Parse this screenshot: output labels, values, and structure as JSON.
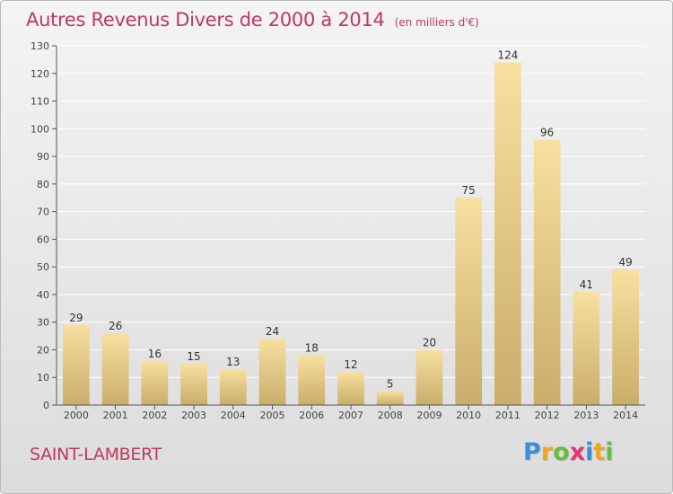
{
  "title": "Autres Revenus Divers de 2000 à 2014",
  "unit": "(en milliers d'€)",
  "commune": "SAINT-LAMBERT",
  "logo": {
    "text": "Proxiti",
    "letters": [
      {
        "ch": "P",
        "color": "#3a8fd8"
      },
      {
        "ch": "r",
        "color": "#f2a51c"
      },
      {
        "ch": "o",
        "color": "#6bbb3e"
      },
      {
        "ch": "x",
        "color": "#e2367a"
      },
      {
        "ch": "i",
        "color": "#3a8fd8"
      },
      {
        "ch": "t",
        "color": "#f2a51c"
      },
      {
        "ch": "i",
        "color": "#6bbb3e"
      }
    ]
  },
  "colors": {
    "title": "#c0385e",
    "bar_light": "#f7e0a0",
    "bar_dark": "#c9ad6b",
    "grid": "#ffffff",
    "axis": "#555555"
  },
  "chart_data": {
    "type": "bar",
    "categories": [
      "2000",
      "2001",
      "2002",
      "2003",
      "2004",
      "2005",
      "2006",
      "2007",
      "2008",
      "2009",
      "2010",
      "2011",
      "2012",
      "2013",
      "2014"
    ],
    "values": [
      29,
      26,
      16,
      15,
      13,
      24,
      18,
      12,
      5,
      20,
      75,
      124,
      96,
      41,
      49
    ],
    "title": "Autres Revenus Divers de 2000 à 2014",
    "xlabel": "",
    "ylabel": "",
    "ylim": [
      0,
      130
    ],
    "yticks": [
      0,
      10,
      20,
      30,
      40,
      50,
      60,
      70,
      80,
      90,
      100,
      110,
      120,
      130
    ],
    "grid": true,
    "data_labels": true
  }
}
